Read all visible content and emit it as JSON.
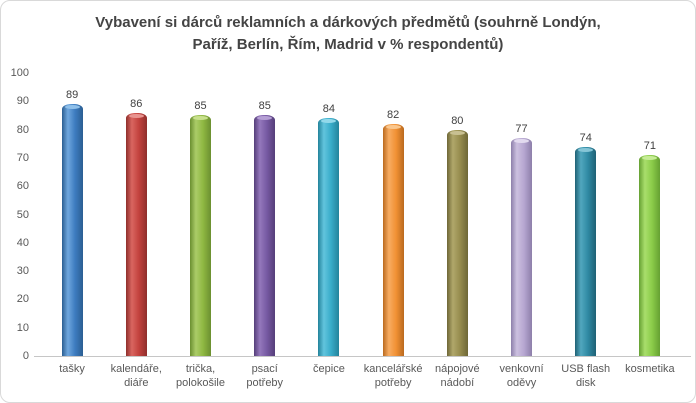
{
  "colors": {
    "background": "#FFFFFF",
    "frame_border": "#D9D9D9",
    "axis_line": "#C6C6C6",
    "axis_text": "#595959",
    "value_label_text": "#404040",
    "title_text": "#444444"
  },
  "chart_data": {
    "type": "bar",
    "bar_style": "3d-cylinder",
    "title": "Vybavení si dárců reklamních a dárkových předmětů (souhrně Londýn, Paříž, Berlín, Řím, Madrid v % respondentů)",
    "title_lines": [
      "Vybavení si dárců reklamních a dárkových předmětů (souhrně Londýn,",
      "Paříž, Berlín, Řím, Madrid v % respondentů)"
    ],
    "categories": [
      "tašky",
      "kalendáře, diáře",
      "trička, polokošile",
      "psací potřeby",
      "čepice",
      "kancelářské potřeby",
      "nápojové nádobí",
      "venkovní oděvy",
      "USB flash disk",
      "kosmetika"
    ],
    "category_label_lines": [
      [
        "tašky"
      ],
      [
        "kalendáře,",
        "diáře"
      ],
      [
        "trička,",
        "polokošile"
      ],
      [
        "psací",
        "potřeby"
      ],
      [
        "čepice"
      ],
      [
        "kancelářské",
        "potřeby"
      ],
      [
        "nápojové",
        "nádobí"
      ],
      [
        "venkovní",
        "oděvy"
      ],
      [
        "USB flash",
        "disk"
      ],
      [
        "kosmetika"
      ]
    ],
    "values": [
      89,
      86,
      85,
      85,
      84,
      82,
      80,
      77,
      74,
      71
    ],
    "xlabel": "",
    "ylabel": "",
    "ylim": [
      0,
      100
    ],
    "y_ticks": [
      0,
      10,
      20,
      30,
      40,
      50,
      60,
      70,
      80,
      90,
      100
    ],
    "grid": false,
    "legend": null,
    "bar_colors": [
      {
        "name": "blue",
        "base": "#3D7CC0",
        "light": "#6FA7DE",
        "dark": "#2B5E92",
        "cap": "#8FC0EA"
      },
      {
        "name": "red",
        "base": "#C2413D",
        "light": "#D96560",
        "dark": "#8F2F2C",
        "cap": "#E89490"
      },
      {
        "name": "green",
        "base": "#8FB842",
        "light": "#ABCC68",
        "dark": "#6B8F30",
        "cap": "#C8E08D"
      },
      {
        "name": "purple",
        "base": "#7659A2",
        "light": "#9478BC",
        "dark": "#553E79",
        "cap": "#B59FD4"
      },
      {
        "name": "cyan",
        "base": "#38ACC9",
        "light": "#62C4DD",
        "dark": "#23839B",
        "cap": "#93D9EA"
      },
      {
        "name": "orange",
        "base": "#F19134",
        "light": "#F7AC62",
        "dark": "#BA6A1F",
        "cap": "#FAC78E"
      },
      {
        "name": "olive",
        "base": "#968C4E",
        "light": "#B0A76A",
        "dark": "#6E6737",
        "cap": "#C8C092"
      },
      {
        "name": "lavender",
        "base": "#B6A6D1",
        "light": "#CCC0E0",
        "dark": "#8D7FAA",
        "cap": "#E2DAEF"
      },
      {
        "name": "teal",
        "base": "#2F89A3",
        "light": "#51A7BE",
        "dark": "#1F6175",
        "cap": "#85C5D6"
      },
      {
        "name": "light-green",
        "base": "#8BCC49",
        "light": "#A8DE6C",
        "dark": "#65A032",
        "cap": "#C6EC96"
      }
    ]
  }
}
